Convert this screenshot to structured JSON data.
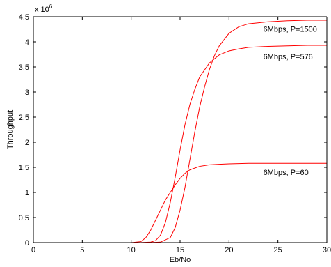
{
  "chart_data": {
    "type": "line",
    "xlabel": "Eb/No",
    "ylabel": "Throughput",
    "y_multiplier": {
      "base": "x 10",
      "exponent": "6"
    },
    "xlim": [
      0,
      30
    ],
    "ylim": [
      0,
      4.5
    ],
    "x_ticks": [
      0,
      5,
      10,
      15,
      20,
      25,
      30
    ],
    "y_ticks": [
      0,
      0.5,
      1,
      1.5,
      2,
      2.5,
      3,
      3.5,
      4,
      4.5
    ],
    "grid": false,
    "line_color": "#ff0000",
    "series": [
      {
        "label": "6Mbps, P=1500",
        "x": [
          6,
          8,
          10,
          12,
          13,
          14,
          14.5,
          15,
          15.5,
          16,
          16.5,
          17,
          17.5,
          18,
          18.5,
          19,
          20,
          21,
          22,
          24,
          26,
          28,
          30
        ],
        "y": [
          0,
          0,
          0,
          0.001,
          0.01,
          0.1,
          0.3,
          0.65,
          1.1,
          1.65,
          2.2,
          2.7,
          3.1,
          3.45,
          3.72,
          3.92,
          4.17,
          4.3,
          4.36,
          4.4,
          4.42,
          4.43,
          4.43
        ]
      },
      {
        "label": "6Mbps, P=576",
        "x": [
          6,
          8,
          10,
          11,
          12,
          12.5,
          13,
          13.5,
          14,
          14.5,
          15,
          15.5,
          16,
          16.5,
          17,
          18,
          19,
          20,
          21,
          22,
          24,
          26,
          28,
          30
        ],
        "y": [
          0,
          0,
          0,
          0.001,
          0.01,
          0.04,
          0.15,
          0.4,
          0.8,
          1.3,
          1.85,
          2.35,
          2.75,
          3.05,
          3.3,
          3.58,
          3.74,
          3.82,
          3.86,
          3.89,
          3.91,
          3.92,
          3.93,
          3.93
        ]
      },
      {
        "label": "6Mbps, P=60",
        "x": [
          6,
          8,
          10,
          11,
          11.5,
          12,
          12.5,
          13,
          13.5,
          14,
          14.5,
          15,
          15.5,
          16,
          17,
          18,
          19,
          20,
          22,
          25,
          30
        ],
        "y": [
          0,
          0,
          0,
          0.02,
          0.1,
          0.25,
          0.45,
          0.65,
          0.85,
          1.0,
          1.15,
          1.28,
          1.38,
          1.45,
          1.52,
          1.55,
          1.56,
          1.57,
          1.58,
          1.58,
          1.58
        ]
      }
    ],
    "annotations": [
      {
        "text": "6Mbps, P=1500",
        "x": 23.5,
        "y": 4.2
      },
      {
        "text": "6Mbps, P=576",
        "x": 23.5,
        "y": 3.65
      },
      {
        "text": "6Mbps, P=60",
        "x": 23.5,
        "y": 1.35
      }
    ]
  }
}
